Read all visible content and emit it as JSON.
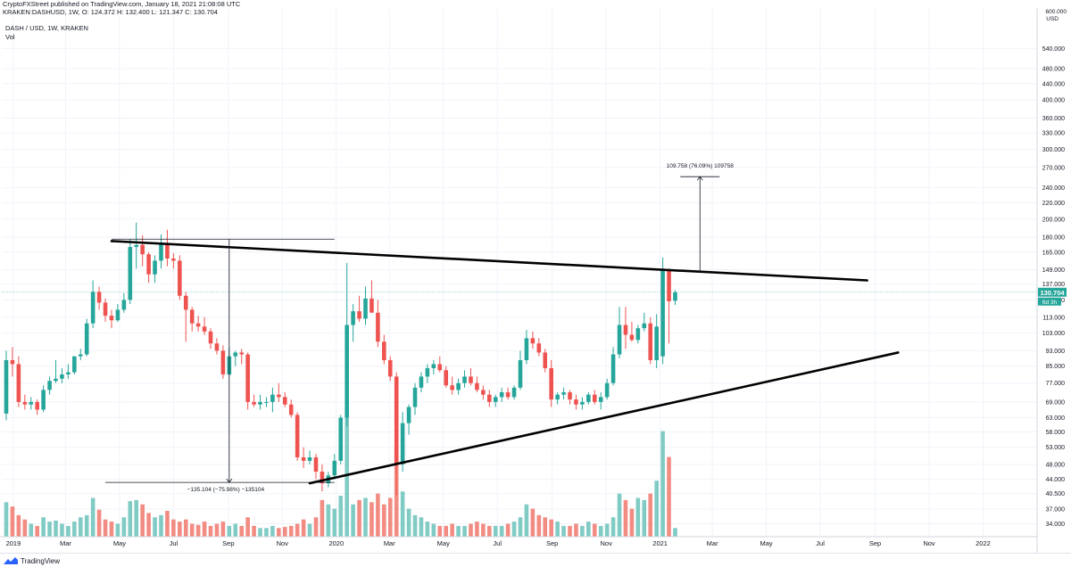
{
  "header": {
    "publish_line": "CryptoFXStreet published on TradingView.com, January 18, 2021 21:08:08 UTC"
  },
  "legend": {
    "symbol_line": "KRAKEN:DASHUSD, 1W, O: 124.372 H: 132.400 L: 121.347 C: 130.704",
    "pair_line": "DASH / USD, 1W, KRAKEN",
    "volume_label": "Vol"
  },
  "price_axis": {
    "currency_top": "600.000",
    "currency_unit": "USD",
    "current_price": "130.704",
    "countdown": "6d 3h",
    "current_price_color": "#26a69a"
  },
  "footer": {
    "brand": "TradingView"
  },
  "colors": {
    "up": "#26a69a",
    "down": "#ef5350",
    "volume_up": "#80cbc4",
    "volume_down": "#f28b82",
    "trendline": "#000000",
    "measure": "#131722",
    "price_line": "#80cbc4"
  },
  "chart_data": {
    "type": "candlestick",
    "title": "DASH / USD, 1W, KRAKEN",
    "xlabel": "",
    "ylabel": "USD",
    "y_scale": "log",
    "ylim": [
      32,
      600
    ],
    "xlim": [
      "2018-12-24",
      "2022-02-28"
    ],
    "grid": true,
    "x_ticks": [
      "2019",
      "Mar",
      "May",
      "Jul",
      "Sep",
      "Nov",
      "2020",
      "Mar",
      "May",
      "Jul",
      "Sep",
      "Nov",
      "2021",
      "Mar",
      "May",
      "Jul",
      "Sep",
      "Nov",
      "2022"
    ],
    "x_tick_dates": [
      "2019-01-01",
      "2019-03-01",
      "2019-05-01",
      "2019-07-01",
      "2019-09-01",
      "2019-11-01",
      "2020-01-01",
      "2020-03-01",
      "2020-05-01",
      "2020-07-01",
      "2020-09-01",
      "2020-11-01",
      "2021-01-01",
      "2021-03-01",
      "2021-05-01",
      "2021-07-01",
      "2021-09-01",
      "2021-11-01",
      "2022-01-01"
    ],
    "y_ticks": [
      540,
      480,
      440,
      400,
      360,
      330,
      300,
      270,
      240,
      220,
      200,
      180,
      165,
      149,
      137,
      125,
      113,
      103,
      93,
      85,
      77,
      69,
      63,
      58,
      53,
      48,
      44,
      40.5,
      37,
      34
    ],
    "y_tick_labels": [
      "540.000",
      "480.000",
      "440.000",
      "400.000",
      "360.000",
      "330.000",
      "300.000",
      "270.000",
      "240.000",
      "220.000",
      "200.000",
      "180.000",
      "165.000",
      "149.000",
      "137.000",
      "125.000",
      "113.000",
      "103.000",
      "93.000",
      "85.000",
      "77.000",
      "69.000",
      "63.000",
      "58.000",
      "53.000",
      "48.000",
      "44.000",
      "40.500",
      "37.000",
      "34.000"
    ],
    "candles": [
      {
        "date": "2018-12-24",
        "o": 64.5,
        "h": 93,
        "l": 62,
        "c": 88
      },
      {
        "date": "2018-12-31",
        "o": 88,
        "h": 95,
        "l": 80,
        "c": 86
      },
      {
        "date": "2019-01-07",
        "o": 86,
        "h": 90,
        "l": 67,
        "c": 69
      },
      {
        "date": "2019-01-14",
        "o": 69,
        "h": 72,
        "l": 66,
        "c": 68
      },
      {
        "date": "2019-01-21",
        "o": 68,
        "h": 71,
        "l": 66,
        "c": 69
      },
      {
        "date": "2019-01-28",
        "o": 69,
        "h": 70,
        "l": 64,
        "c": 66
      },
      {
        "date": "2019-02-04",
        "o": 66,
        "h": 76,
        "l": 65,
        "c": 74
      },
      {
        "date": "2019-02-11",
        "o": 74,
        "h": 80,
        "l": 72,
        "c": 78
      },
      {
        "date": "2019-02-18",
        "o": 78,
        "h": 88,
        "l": 77,
        "c": 79
      },
      {
        "date": "2019-02-25",
        "o": 79,
        "h": 84,
        "l": 77,
        "c": 81
      },
      {
        "date": "2019-03-04",
        "o": 81,
        "h": 86,
        "l": 79,
        "c": 82
      },
      {
        "date": "2019-03-11",
        "o": 82,
        "h": 90,
        "l": 81,
        "c": 90
      },
      {
        "date": "2019-03-18",
        "o": 90,
        "h": 94,
        "l": 88,
        "c": 91
      },
      {
        "date": "2019-03-25",
        "o": 91,
        "h": 112,
        "l": 90,
        "c": 109
      },
      {
        "date": "2019-04-01",
        "o": 109,
        "h": 140,
        "l": 106,
        "c": 131
      },
      {
        "date": "2019-04-08",
        "o": 131,
        "h": 135,
        "l": 118,
        "c": 123
      },
      {
        "date": "2019-04-15",
        "o": 123,
        "h": 126,
        "l": 110,
        "c": 114
      },
      {
        "date": "2019-04-22",
        "o": 114,
        "h": 118,
        "l": 106,
        "c": 111
      },
      {
        "date": "2019-04-29",
        "o": 111,
        "h": 122,
        "l": 110,
        "c": 118
      },
      {
        "date": "2019-05-06",
        "o": 118,
        "h": 130,
        "l": 116,
        "c": 125
      },
      {
        "date": "2019-05-13",
        "o": 125,
        "h": 178,
        "l": 122,
        "c": 170
      },
      {
        "date": "2019-05-20",
        "o": 170,
        "h": 196,
        "l": 150,
        "c": 172
      },
      {
        "date": "2019-05-27",
        "o": 172,
        "h": 182,
        "l": 152,
        "c": 163
      },
      {
        "date": "2019-06-03",
        "o": 163,
        "h": 165,
        "l": 138,
        "c": 145
      },
      {
        "date": "2019-06-10",
        "o": 145,
        "h": 162,
        "l": 138,
        "c": 157
      },
      {
        "date": "2019-06-17",
        "o": 157,
        "h": 183,
        "l": 150,
        "c": 174
      },
      {
        "date": "2019-06-24",
        "o": 174,
        "h": 188,
        "l": 152,
        "c": 159
      },
      {
        "date": "2019-07-01",
        "o": 159,
        "h": 164,
        "l": 150,
        "c": 157
      },
      {
        "date": "2019-07-08",
        "o": 157,
        "h": 162,
        "l": 125,
        "c": 128
      },
      {
        "date": "2019-07-15",
        "o": 128,
        "h": 131,
        "l": 98,
        "c": 118
      },
      {
        "date": "2019-07-22",
        "o": 118,
        "h": 120,
        "l": 104,
        "c": 109
      },
      {
        "date": "2019-07-29",
        "o": 109,
        "h": 114,
        "l": 104,
        "c": 107
      },
      {
        "date": "2019-08-05",
        "o": 107,
        "h": 113,
        "l": 102,
        "c": 104
      },
      {
        "date": "2019-08-12",
        "o": 104,
        "h": 106,
        "l": 94,
        "c": 97
      },
      {
        "date": "2019-08-19",
        "o": 97,
        "h": 100,
        "l": 91,
        "c": 93
      },
      {
        "date": "2019-08-26",
        "o": 93,
        "h": 96,
        "l": 79,
        "c": 81
      },
      {
        "date": "2019-09-02",
        "o": 81,
        "h": 95,
        "l": 80,
        "c": 90
      },
      {
        "date": "2019-09-09",
        "o": 90,
        "h": 93,
        "l": 85,
        "c": 92
      },
      {
        "date": "2019-09-16",
        "o": 92,
        "h": 94,
        "l": 86,
        "c": 91
      },
      {
        "date": "2019-09-23",
        "o": 91,
        "h": 92,
        "l": 66,
        "c": 69
      },
      {
        "date": "2019-09-30",
        "o": 69,
        "h": 72,
        "l": 67,
        "c": 68
      },
      {
        "date": "2019-10-07",
        "o": 68,
        "h": 72,
        "l": 66,
        "c": 69
      },
      {
        "date": "2019-10-14",
        "o": 69,
        "h": 71,
        "l": 67,
        "c": 69
      },
      {
        "date": "2019-10-21",
        "o": 69,
        "h": 75,
        "l": 65,
        "c": 72
      },
      {
        "date": "2019-10-28",
        "o": 72,
        "h": 77,
        "l": 69,
        "c": 71
      },
      {
        "date": "2019-11-04",
        "o": 71,
        "h": 73,
        "l": 67,
        "c": 68
      },
      {
        "date": "2019-11-11",
        "o": 68,
        "h": 70,
        "l": 63,
        "c": 64
      },
      {
        "date": "2019-11-18",
        "o": 64,
        "h": 65,
        "l": 49,
        "c": 50
      },
      {
        "date": "2019-11-25",
        "o": 50,
        "h": 53,
        "l": 47,
        "c": 49
      },
      {
        "date": "2019-12-02",
        "o": 49,
        "h": 52,
        "l": 48,
        "c": 50
      },
      {
        "date": "2019-12-09",
        "o": 50,
        "h": 51,
        "l": 44,
        "c": 46
      },
      {
        "date": "2019-12-16",
        "o": 46,
        "h": 48,
        "l": 41,
        "c": 43
      },
      {
        "date": "2019-12-23",
        "o": 43,
        "h": 46,
        "l": 42,
        "c": 45
      },
      {
        "date": "2019-12-30",
        "o": 45,
        "h": 51,
        "l": 44,
        "c": 49
      },
      {
        "date": "2020-01-06",
        "o": 49,
        "h": 64,
        "l": 48,
        "c": 63
      },
      {
        "date": "2020-01-13",
        "o": 63,
        "h": 155,
        "l": 60,
        "c": 108
      },
      {
        "date": "2020-01-20",
        "o": 108,
        "h": 122,
        "l": 98,
        "c": 117
      },
      {
        "date": "2020-01-27",
        "o": 117,
        "h": 128,
        "l": 110,
        "c": 112
      },
      {
        "date": "2020-02-03",
        "o": 112,
        "h": 135,
        "l": 108,
        "c": 126
      },
      {
        "date": "2020-02-10",
        "o": 126,
        "h": 140,
        "l": 117,
        "c": 116
      },
      {
        "date": "2020-02-17",
        "o": 116,
        "h": 125,
        "l": 95,
        "c": 98
      },
      {
        "date": "2020-02-24",
        "o": 98,
        "h": 102,
        "l": 86,
        "c": 88
      },
      {
        "date": "2020-03-02",
        "o": 88,
        "h": 90,
        "l": 78,
        "c": 80
      },
      {
        "date": "2020-03-09",
        "o": 80,
        "h": 82,
        "l": 40,
        "c": 48
      },
      {
        "date": "2020-03-16",
        "o": 48,
        "h": 65,
        "l": 46,
        "c": 61
      },
      {
        "date": "2020-03-23",
        "o": 61,
        "h": 68,
        "l": 57,
        "c": 67
      },
      {
        "date": "2020-03-30",
        "o": 67,
        "h": 77,
        "l": 64,
        "c": 75
      },
      {
        "date": "2020-04-06",
        "o": 75,
        "h": 82,
        "l": 73,
        "c": 80
      },
      {
        "date": "2020-04-13",
        "o": 80,
        "h": 86,
        "l": 77,
        "c": 84
      },
      {
        "date": "2020-04-20",
        "o": 84,
        "h": 88,
        "l": 81,
        "c": 86
      },
      {
        "date": "2020-04-27",
        "o": 86,
        "h": 90,
        "l": 82,
        "c": 83
      },
      {
        "date": "2020-05-04",
        "o": 83,
        "h": 85,
        "l": 75,
        "c": 76
      },
      {
        "date": "2020-05-11",
        "o": 76,
        "h": 80,
        "l": 72,
        "c": 74
      },
      {
        "date": "2020-05-18",
        "o": 74,
        "h": 79,
        "l": 72,
        "c": 77
      },
      {
        "date": "2020-05-25",
        "o": 77,
        "h": 83,
        "l": 75,
        "c": 80
      },
      {
        "date": "2020-06-01",
        "o": 80,
        "h": 84,
        "l": 76,
        "c": 77
      },
      {
        "date": "2020-06-08",
        "o": 77,
        "h": 80,
        "l": 73,
        "c": 74
      },
      {
        "date": "2020-06-15",
        "o": 74,
        "h": 76,
        "l": 70,
        "c": 72
      },
      {
        "date": "2020-06-22",
        "o": 72,
        "h": 74,
        "l": 67,
        "c": 69
      },
      {
        "date": "2020-06-29",
        "o": 69,
        "h": 72,
        "l": 67,
        "c": 71
      },
      {
        "date": "2020-07-06",
        "o": 71,
        "h": 75,
        "l": 69,
        "c": 73
      },
      {
        "date": "2020-07-13",
        "o": 73,
        "h": 75,
        "l": 70,
        "c": 71
      },
      {
        "date": "2020-07-20",
        "o": 71,
        "h": 76,
        "l": 70,
        "c": 75
      },
      {
        "date": "2020-07-27",
        "o": 75,
        "h": 93,
        "l": 74,
        "c": 88
      },
      {
        "date": "2020-08-03",
        "o": 88,
        "h": 105,
        "l": 86,
        "c": 100
      },
      {
        "date": "2020-08-10",
        "o": 100,
        "h": 104,
        "l": 94,
        "c": 97
      },
      {
        "date": "2020-08-17",
        "o": 97,
        "h": 100,
        "l": 90,
        "c": 92
      },
      {
        "date": "2020-08-24",
        "o": 92,
        "h": 94,
        "l": 82,
        "c": 84
      },
      {
        "date": "2020-08-31",
        "o": 84,
        "h": 88,
        "l": 67,
        "c": 70
      },
      {
        "date": "2020-09-07",
        "o": 70,
        "h": 73,
        "l": 68,
        "c": 72
      },
      {
        "date": "2020-09-14",
        "o": 72,
        "h": 75,
        "l": 70,
        "c": 73
      },
      {
        "date": "2020-09-21",
        "o": 73,
        "h": 74,
        "l": 68,
        "c": 70
      },
      {
        "date": "2020-09-28",
        "o": 70,
        "h": 72,
        "l": 66,
        "c": 68
      },
      {
        "date": "2020-10-05",
        "o": 68,
        "h": 71,
        "l": 66,
        "c": 69
      },
      {
        "date": "2020-10-12",
        "o": 69,
        "h": 73,
        "l": 68,
        "c": 72
      },
      {
        "date": "2020-10-19",
        "o": 72,
        "h": 74,
        "l": 68,
        "c": 69
      },
      {
        "date": "2020-10-26",
        "o": 69,
        "h": 73,
        "l": 66,
        "c": 71
      },
      {
        "date": "2020-11-02",
        "o": 71,
        "h": 79,
        "l": 70,
        "c": 77
      },
      {
        "date": "2020-11-09",
        "o": 77,
        "h": 95,
        "l": 76,
        "c": 91
      },
      {
        "date": "2020-11-16",
        "o": 91,
        "h": 120,
        "l": 89,
        "c": 108
      },
      {
        "date": "2020-11-23",
        "o": 108,
        "h": 120,
        "l": 94,
        "c": 102
      },
      {
        "date": "2020-11-30",
        "o": 102,
        "h": 110,
        "l": 98,
        "c": 99
      },
      {
        "date": "2020-12-07",
        "o": 99,
        "h": 108,
        "l": 97,
        "c": 106
      },
      {
        "date": "2020-12-14",
        "o": 106,
        "h": 116,
        "l": 104,
        "c": 109
      },
      {
        "date": "2020-12-21",
        "o": 109,
        "h": 113,
        "l": 86,
        "c": 88
      },
      {
        "date": "2020-12-28",
        "o": 88,
        "h": 115,
        "l": 84,
        "c": 107
      },
      {
        "date": "2021-01-04",
        "o": 90,
        "h": 160,
        "l": 86,
        "c": 148
      },
      {
        "date": "2021-01-11",
        "o": 148,
        "h": 150,
        "l": 97,
        "c": 124
      },
      {
        "date": "2021-01-18",
        "o": 124.372,
        "h": 132.4,
        "l": 121.347,
        "c": 130.704
      }
    ],
    "volume": {
      "label": "Vol",
      "values": [
        0.32,
        0.28,
        0.2,
        0.16,
        0.12,
        0.1,
        0.18,
        0.14,
        0.15,
        0.12,
        0.1,
        0.14,
        0.18,
        0.2,
        0.36,
        0.25,
        0.16,
        0.14,
        0.12,
        0.18,
        0.33,
        0.34,
        0.3,
        0.22,
        0.18,
        0.2,
        0.24,
        0.16,
        0.14,
        0.16,
        0.12,
        0.11,
        0.14,
        0.1,
        0.12,
        0.14,
        0.1,
        0.12,
        0.1,
        0.18,
        0.1,
        0.08,
        0.08,
        0.1,
        0.08,
        0.09,
        0.1,
        0.12,
        0.16,
        0.12,
        0.18,
        0.34,
        0.3,
        0.26,
        0.38,
        1.2,
        0.3,
        0.34,
        0.36,
        0.32,
        0.4,
        0.3,
        0.36,
        0.8,
        0.42,
        0.26,
        0.2,
        0.18,
        0.14,
        0.12,
        0.1,
        0.1,
        0.12,
        0.1,
        0.1,
        0.12,
        0.14,
        0.12,
        0.1,
        0.1,
        0.1,
        0.12,
        0.14,
        0.18,
        0.3,
        0.26,
        0.2,
        0.18,
        0.16,
        0.14,
        0.1,
        0.1,
        0.12,
        0.1,
        0.14,
        0.12,
        0.1,
        0.12,
        0.18,
        0.4,
        0.34,
        0.26,
        0.36,
        0.34,
        0.4,
        0.52,
        0.98,
        0.74,
        0.08
      ]
    },
    "annotations": [
      {
        "type": "trendline",
        "from": {
          "date": "2019-04-22",
          "y": 176
        },
        "to": {
          "date": "2021-08-23",
          "y": 140
        },
        "label": ""
      },
      {
        "type": "trendline",
        "from": {
          "date": "2019-12-02",
          "y": 43
        },
        "to": {
          "date": "2021-09-27",
          "y": 92
        },
        "label": ""
      },
      {
        "type": "hline",
        "from": {
          "date": "2019-04-22",
          "y": 178
        },
        "to": {
          "date": "2019-12-30",
          "y": 178
        }
      },
      {
        "type": "hline",
        "from": {
          "date": "2019-04-15",
          "y": 43.2
        },
        "to": {
          "date": "2019-12-30",
          "y": 43.2
        }
      },
      {
        "type": "measure",
        "x_date": "2019-09-02",
        "from": 178,
        "to": 43.2,
        "text": "−135.104 (−75.98%) −135104"
      },
      {
        "type": "measure",
        "x_date": "2021-02-15",
        "from": 147,
        "to": 256,
        "text": "109.758 (76.09%) 109758"
      }
    ]
  }
}
